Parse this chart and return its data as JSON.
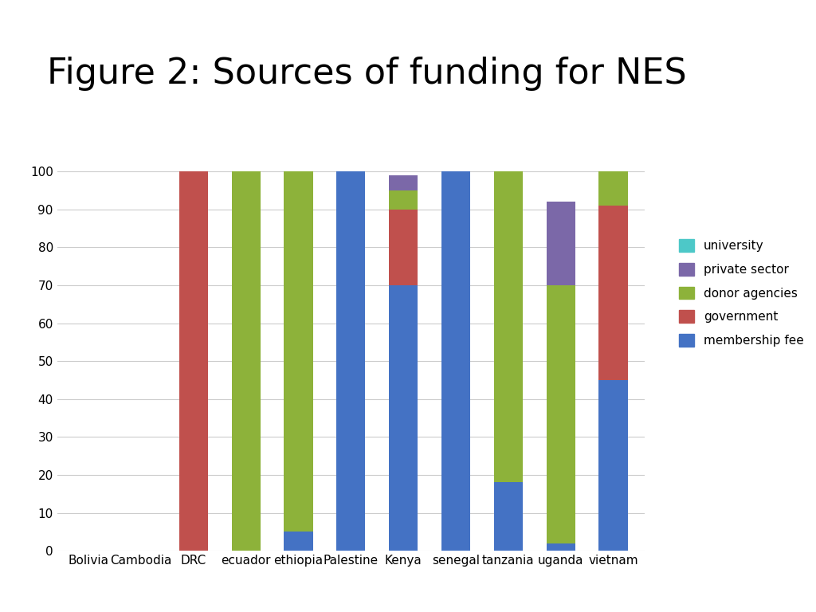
{
  "categories": [
    "Bolivia",
    "Cambodia",
    "DRC",
    "ecuador",
    "ethiopia",
    "Palestine",
    "Kenya",
    "senegal",
    "tanzania",
    "uganda",
    "vietnam"
  ],
  "series": {
    "membership fee": [
      0,
      0,
      0,
      0,
      5,
      100,
      70,
      100,
      18,
      2,
      45
    ],
    "government": [
      0,
      0,
      100,
      0,
      0,
      0,
      20,
      0,
      0,
      0,
      46
    ],
    "donor agencies": [
      0,
      0,
      0,
      100,
      95,
      0,
      5,
      0,
      82,
      68,
      9
    ],
    "private sector": [
      0,
      0,
      0,
      0,
      0,
      0,
      4,
      0,
      0,
      22,
      0
    ],
    "university": [
      0,
      0,
      0,
      0,
      0,
      0,
      0,
      0,
      0,
      0,
      0
    ]
  },
  "colors": {
    "university": "#4DC8C8",
    "private sector": "#7B68A8",
    "donor agencies": "#8DB23A",
    "government": "#C0504D",
    "membership fee": "#4472C4"
  },
  "title": "Figure 2: Sources of funding for NES",
  "title_fontsize": 32,
  "ylim": [
    0,
    100
  ],
  "yticks": [
    0,
    10,
    20,
    30,
    40,
    50,
    60,
    70,
    80,
    90,
    100
  ],
  "legend_order": [
    "university",
    "private sector",
    "donor agencies",
    "government",
    "membership fee"
  ],
  "background_color": "#ffffff",
  "bar_width": 0.55
}
